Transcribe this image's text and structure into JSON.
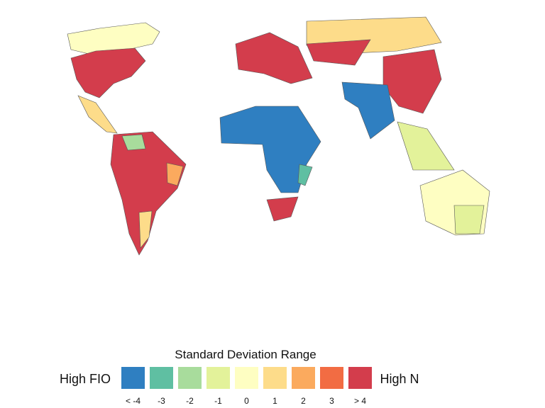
{
  "legend": {
    "title": "Standard Deviation Range",
    "left_label": "High FIO",
    "right_label": "High N",
    "items": [
      {
        "label": "< -4",
        "color": "#2f7fc1"
      },
      {
        "label": "-3",
        "color": "#5fbfa2"
      },
      {
        "label": "-2",
        "color": "#a8dc9c"
      },
      {
        "label": "-1",
        "color": "#e3f29a"
      },
      {
        "label": "0",
        "color": "#fefec2"
      },
      {
        "label": "1",
        "color": "#fddc8a"
      },
      {
        "label": "2",
        "color": "#fbaa5e"
      },
      {
        "label": "3",
        "color": "#f26c43"
      },
      {
        "label": "> 4",
        "color": "#d33d4c"
      }
    ]
  }
}
